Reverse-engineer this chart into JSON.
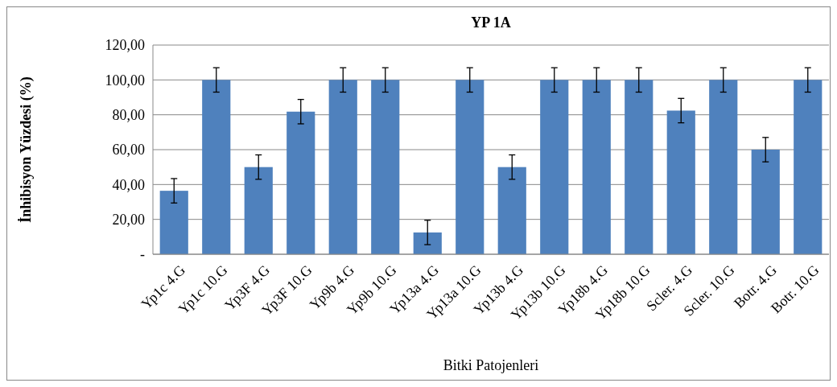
{
  "chart_data": {
    "type": "bar",
    "title": "YP 1A",
    "xlabel": "Bitki Patojenleri",
    "ylabel": "İnhibisyon Yüzdesi (%)",
    "categories": [
      "Yp1c 4.G",
      "Yp1c 10.G",
      "Yp3F 4.G",
      "Yp3F 10.G",
      "Yp9b 4.G",
      "Yp9b 10.G",
      "Yp13a 4.G",
      "Yp13a 10.G",
      "Yp13b 4.G",
      "Yp13b 10.G",
      "Yp18b 4.G",
      "Yp18b 10.G",
      "Scler. 4.G",
      "Scler. 10.G",
      "Botr. 4.G",
      "Botr. 10.G"
    ],
    "values": [
      36.4,
      100,
      50,
      81.8,
      100,
      100,
      12.5,
      100,
      50,
      100,
      100,
      100,
      82.4,
      100,
      60,
      100
    ],
    "errors": [
      7,
      7,
      7,
      7,
      7,
      7,
      7,
      7,
      7,
      7,
      7,
      7,
      7,
      7,
      7,
      7
    ],
    "color": "#4f81bd",
    "ylim": [
      0,
      120
    ],
    "yticks": [
      {
        "value": 0,
        "label": "-"
      },
      {
        "value": 20,
        "label": "20,00"
      },
      {
        "value": 40,
        "label": "40,00"
      },
      {
        "value": 60,
        "label": "60,00"
      },
      {
        "value": 80,
        "label": "80,00"
      },
      {
        "value": 100,
        "label": "100,00"
      },
      {
        "value": 120,
        "label": "120,00"
      }
    ],
    "grid": "y"
  }
}
